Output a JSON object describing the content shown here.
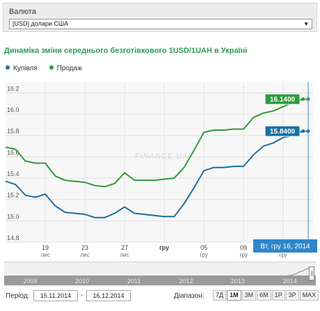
{
  "currency": {
    "label": "Валюта",
    "selected": "[USD] долари США"
  },
  "chart_title": "Динаміка зміни середнього безготівкового 1USD/1UAH в Україні",
  "watermark": "FINANCE.UA",
  "chart_data": {
    "type": "line",
    "title": "Динаміка зміни середнього безготівкового 1USD/1UAH в Україні",
    "xlabel": "",
    "ylabel": "",
    "x_range": [
      "2014-11-15",
      "2014-12-16"
    ],
    "ylim": [
      14.8,
      16.3
    ],
    "y_ticks": [
      "14.8",
      "15.0",
      "15.2",
      "15.4",
      "15.6",
      "15.8",
      "16.0",
      "16.2"
    ],
    "x_ticks": [
      {
        "date": "2014-11-19",
        "day": "19",
        "month": "лис"
      },
      {
        "date": "2014-11-23",
        "day": "23",
        "month": "лис"
      },
      {
        "date": "2014-11-27",
        "day": "27",
        "month": "лис"
      },
      {
        "date": "2014-12-01",
        "day": "гру",
        "month": ""
      },
      {
        "date": "2014-12-05",
        "day": "05",
        "month": "гру"
      },
      {
        "date": "2014-12-09",
        "day": "09",
        "month": "гру"
      },
      {
        "date": "2014-12-13",
        "day": "13",
        "month": "гру"
      }
    ],
    "grid": true,
    "legend_position": "top-left",
    "series": [
      {
        "name": "Купівля",
        "color": "#1a6fa2",
        "last_label": "15.8400",
        "points": [
          [
            "2014-11-15",
            15.37
          ],
          [
            "2014-11-16",
            15.34
          ],
          [
            "2014-11-17",
            15.24
          ],
          [
            "2014-11-18",
            15.22
          ],
          [
            "2014-11-19",
            15.25
          ],
          [
            "2014-11-20",
            15.14
          ],
          [
            "2014-11-21",
            15.08
          ],
          [
            "2014-11-22",
            15.07
          ],
          [
            "2014-11-23",
            15.06
          ],
          [
            "2014-11-24",
            15.03
          ],
          [
            "2014-11-25",
            15.03
          ],
          [
            "2014-11-26",
            15.07
          ],
          [
            "2014-11-27",
            15.13
          ],
          [
            "2014-11-28",
            15.07
          ],
          [
            "2014-11-29",
            15.06
          ],
          [
            "2014-11-30",
            15.05
          ],
          [
            "2014-12-01",
            15.04
          ],
          [
            "2014-12-02",
            15.04
          ],
          [
            "2014-12-03",
            15.16
          ],
          [
            "2014-12-04",
            15.31
          ],
          [
            "2014-12-05",
            15.47
          ],
          [
            "2014-12-06",
            15.5
          ],
          [
            "2014-12-07",
            15.5
          ],
          [
            "2014-12-08",
            15.51
          ],
          [
            "2014-12-09",
            15.51
          ],
          [
            "2014-12-10",
            15.62
          ],
          [
            "2014-12-11",
            15.7
          ],
          [
            "2014-12-12",
            15.73
          ],
          [
            "2014-12-13",
            15.78
          ],
          [
            "2014-12-14",
            15.8
          ],
          [
            "2014-12-15",
            15.84
          ]
        ]
      },
      {
        "name": "Продаж",
        "color": "#2e9a3e",
        "last_label": "16.1400",
        "points": [
          [
            "2014-11-15",
            15.69
          ],
          [
            "2014-11-16",
            15.67
          ],
          [
            "2014-11-17",
            15.56
          ],
          [
            "2014-11-18",
            15.54
          ],
          [
            "2014-11-19",
            15.54
          ],
          [
            "2014-11-20",
            15.42
          ],
          [
            "2014-11-21",
            15.38
          ],
          [
            "2014-11-22",
            15.37
          ],
          [
            "2014-11-23",
            15.36
          ],
          [
            "2014-11-24",
            15.33
          ],
          [
            "2014-11-25",
            15.32
          ],
          [
            "2014-11-26",
            15.35
          ],
          [
            "2014-11-27",
            15.45
          ],
          [
            "2014-11-28",
            15.38
          ],
          [
            "2014-11-29",
            15.38
          ],
          [
            "2014-11-30",
            15.38
          ],
          [
            "2014-12-01",
            15.39
          ],
          [
            "2014-12-02",
            15.4
          ],
          [
            "2014-12-03",
            15.5
          ],
          [
            "2014-12-04",
            15.66
          ],
          [
            "2014-12-05",
            15.83
          ],
          [
            "2014-12-06",
            15.85
          ],
          [
            "2014-12-07",
            15.85
          ],
          [
            "2014-12-08",
            15.86
          ],
          [
            "2014-12-09",
            15.86
          ],
          [
            "2014-12-10",
            15.97
          ],
          [
            "2014-12-11",
            16.01
          ],
          [
            "2014-12-12",
            16.03
          ],
          [
            "2014-12-13",
            16.07
          ],
          [
            "2014-12-14",
            16.11
          ],
          [
            "2014-12-15",
            16.14
          ]
        ]
      }
    ],
    "crosshair": {
      "date": "2014-12-16",
      "label": "Вт, гру 16, 2014"
    }
  },
  "navigator": {
    "years": [
      "2009",
      "2010",
      "2011",
      "2012",
      "2013",
      "2014"
    ]
  },
  "controls": {
    "period_label": "Період:",
    "date_from": "15.11.2014",
    "separator": "-",
    "date_to": "16.12.2014",
    "range_label": "Діапазон:",
    "range_buttons": [
      "7Д",
      "1M",
      "3M",
      "6M",
      "1P",
      "3P",
      "MAX"
    ],
    "active_range": "1M"
  }
}
